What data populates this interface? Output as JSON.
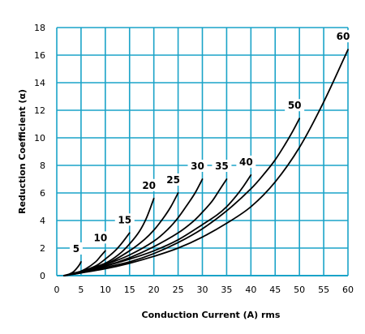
{
  "chart_data": {
    "type": "line",
    "title": "",
    "xlabel": "Conduction Current (A) rms",
    "ylabel": "Reduction Coefficient (α)",
    "xlim": [
      0,
      60
    ],
    "ylim": [
      0,
      18
    ],
    "xticks": [
      0,
      5,
      10,
      15,
      20,
      25,
      30,
      35,
      40,
      45,
      50,
      55,
      60
    ],
    "yticks": [
      0,
      2,
      4,
      6,
      8,
      10,
      12,
      14,
      16,
      18
    ],
    "grid": true,
    "legend": "none",
    "colors": {
      "grid": "#1aa3c8",
      "line": "#000000",
      "background": "#ffffff"
    },
    "series": [
      {
        "name": "5",
        "x": [
          1.5,
          2.5,
          3.5,
          4.5,
          5.0
        ],
        "y": [
          0.0,
          0.1,
          0.3,
          0.7,
          1.0
        ]
      },
      {
        "name": "10",
        "x": [
          1.5,
          4,
          6,
          8,
          9,
          10
        ],
        "y": [
          0.0,
          0.2,
          0.5,
          1.0,
          1.4,
          1.8
        ]
      },
      {
        "name": "15",
        "x": [
          1.5,
          5,
          8,
          10,
          12,
          13.5,
          15
        ],
        "y": [
          0.0,
          0.3,
          0.7,
          1.2,
          1.8,
          2.4,
          3.1
        ]
      },
      {
        "name": "20",
        "x": [
          1.5,
          5,
          10,
          13,
          15,
          17,
          18.5,
          20
        ],
        "y": [
          0.0,
          0.3,
          0.9,
          1.6,
          2.3,
          3.2,
          4.2,
          5.6
        ]
      },
      {
        "name": "25",
        "x": [
          1.5,
          5,
          10,
          15,
          18,
          20,
          22,
          23.5,
          25
        ],
        "y": [
          0.0,
          0.3,
          0.8,
          1.8,
          2.6,
          3.3,
          4.2,
          5.0,
          6.0
        ]
      },
      {
        "name": "30",
        "x": [
          1.5,
          5,
          10,
          15,
          20,
          23,
          25,
          27,
          28.5,
          30
        ],
        "y": [
          0.0,
          0.3,
          0.8,
          1.5,
          2.5,
          3.4,
          4.2,
          5.2,
          6.0,
          7.0
        ]
      },
      {
        "name": "35",
        "x": [
          1.5,
          5,
          10,
          15,
          20,
          25,
          28,
          30,
          32,
          33.5,
          35
        ],
        "y": [
          0.0,
          0.3,
          0.7,
          1.3,
          2.1,
          3.1,
          3.9,
          4.6,
          5.4,
          6.2,
          7.0
        ]
      },
      {
        "name": "40",
        "x": [
          1.5,
          5,
          10,
          15,
          20,
          25,
          30,
          33,
          35,
          37,
          38.5,
          40
        ],
        "y": [
          0.0,
          0.3,
          0.7,
          1.2,
          1.8,
          2.6,
          3.7,
          4.4,
          5.0,
          5.8,
          6.5,
          7.3
        ]
      },
      {
        "name": "50",
        "x": [
          1.5,
          5,
          10,
          15,
          20,
          25,
          30,
          35,
          40,
          43,
          45,
          47,
          48.5,
          50
        ],
        "y": [
          0.0,
          0.2,
          0.6,
          1.0,
          1.6,
          2.4,
          3.4,
          4.7,
          6.3,
          7.5,
          8.4,
          9.5,
          10.4,
          11.4
        ]
      },
      {
        "name": "60",
        "x": [
          1.5,
          5,
          10,
          15,
          20,
          25,
          30,
          35,
          40,
          45,
          50,
          55,
          60
        ],
        "y": [
          0.0,
          0.2,
          0.5,
          0.9,
          1.4,
          2.0,
          2.8,
          3.8,
          5.0,
          6.8,
          9.3,
          12.6,
          16.4
        ]
      }
    ]
  }
}
